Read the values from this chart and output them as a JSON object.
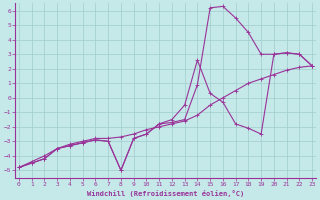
{
  "bg_color": "#c5e8e8",
  "line_color": "#993399",
  "grid_color": "#a0cccc",
  "xlim": [
    0,
    23
  ],
  "ylim": [
    -5.5,
    6.5
  ],
  "xticks": [
    0,
    1,
    2,
    3,
    4,
    5,
    6,
    7,
    8,
    9,
    10,
    11,
    12,
    13,
    14,
    15,
    16,
    17,
    18,
    19,
    20,
    21,
    22,
    23
  ],
  "yticks": [
    -5,
    -4,
    -3,
    -2,
    -1,
    0,
    1,
    2,
    3,
    4,
    5,
    6
  ],
  "xlabel": "Windchill (Refroidissement éolien,°C)",
  "s1_x": [
    0,
    1,
    2,
    3,
    4,
    5,
    6,
    7,
    8,
    9,
    10,
    11,
    12,
    13,
    14,
    15,
    16,
    17,
    18,
    19,
    20,
    21,
    22,
    23
  ],
  "s1_y": [
    -4.8,
    -4.5,
    -4.2,
    -3.5,
    -3.3,
    -3.1,
    -2.9,
    -3.0,
    -5.0,
    -2.8,
    -2.5,
    -1.8,
    -1.7,
    -1.5,
    0.9,
    6.2,
    6.3,
    5.5,
    4.5,
    3.0,
    3.0,
    3.1,
    3.0,
    2.2
  ],
  "s2_x": [
    0,
    1,
    2,
    3,
    4,
    5,
    6,
    7,
    8,
    9,
    10,
    11,
    12,
    13,
    14,
    15,
    16,
    17,
    18,
    19,
    20,
    21,
    22,
    23
  ],
  "s2_y": [
    -4.8,
    -4.5,
    -4.2,
    -3.5,
    -3.3,
    -3.1,
    -2.9,
    -3.0,
    -5.0,
    -2.8,
    -2.5,
    -1.8,
    -1.5,
    -0.5,
    2.6,
    0.3,
    -0.3,
    -1.8,
    -2.1,
    -2.5,
    3.0,
    3.1,
    3.0,
    2.2
  ],
  "s3_x": [
    0,
    1,
    2,
    3,
    4,
    5,
    6,
    7,
    8,
    9,
    10,
    11,
    12,
    13,
    14,
    15,
    16,
    17,
    18,
    19,
    20,
    21,
    22,
    23
  ],
  "s3_y": [
    -4.8,
    -4.4,
    -4.0,
    -3.5,
    -3.2,
    -3.0,
    -2.8,
    -2.8,
    -2.7,
    -2.5,
    -2.2,
    -2.0,
    -1.8,
    -1.6,
    -1.2,
    -0.5,
    0.0,
    0.5,
    1.0,
    1.3,
    1.6,
    1.9,
    2.1,
    2.2
  ]
}
